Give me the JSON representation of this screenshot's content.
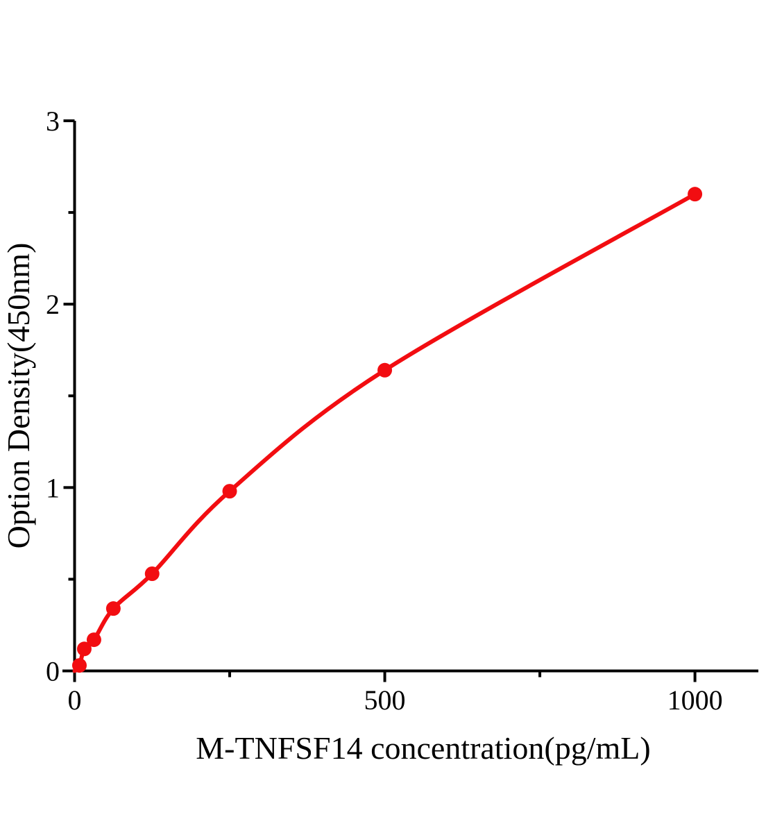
{
  "chart_data": {
    "type": "line",
    "title": "",
    "xlabel": "M-TNFSF14 concentration(pg/mL)",
    "ylabel": "Option Density(450nm)",
    "x": [
      7.8,
      15.6,
      31.25,
      62.5,
      125,
      250,
      500,
      1000
    ],
    "y": [
      0.03,
      0.12,
      0.17,
      0.34,
      0.53,
      0.98,
      1.64,
      2.6
    ],
    "curve_start": [
      0,
      0
    ],
    "xlim": [
      0,
      1100
    ],
    "ylim": [
      0,
      3
    ],
    "x_major_ticks": [
      0,
      500,
      1000
    ],
    "x_major_tick_labels": [
      "0",
      "500",
      "1000"
    ],
    "x_minor_ticks": [
      250,
      750
    ],
    "y_major_ticks": [
      0,
      1,
      2,
      3
    ],
    "y_major_tick_labels": [
      "0",
      "1",
      "2",
      "3"
    ],
    "y_minor_ticks": [
      0.5,
      1.5,
      2.5
    ],
    "grid": false,
    "legend_position": "none",
    "marker": "filled-circle",
    "colors": {
      "series": "#F20D11",
      "axis": "#000000",
      "text": "#000000",
      "background": "#FFFFFF"
    }
  }
}
